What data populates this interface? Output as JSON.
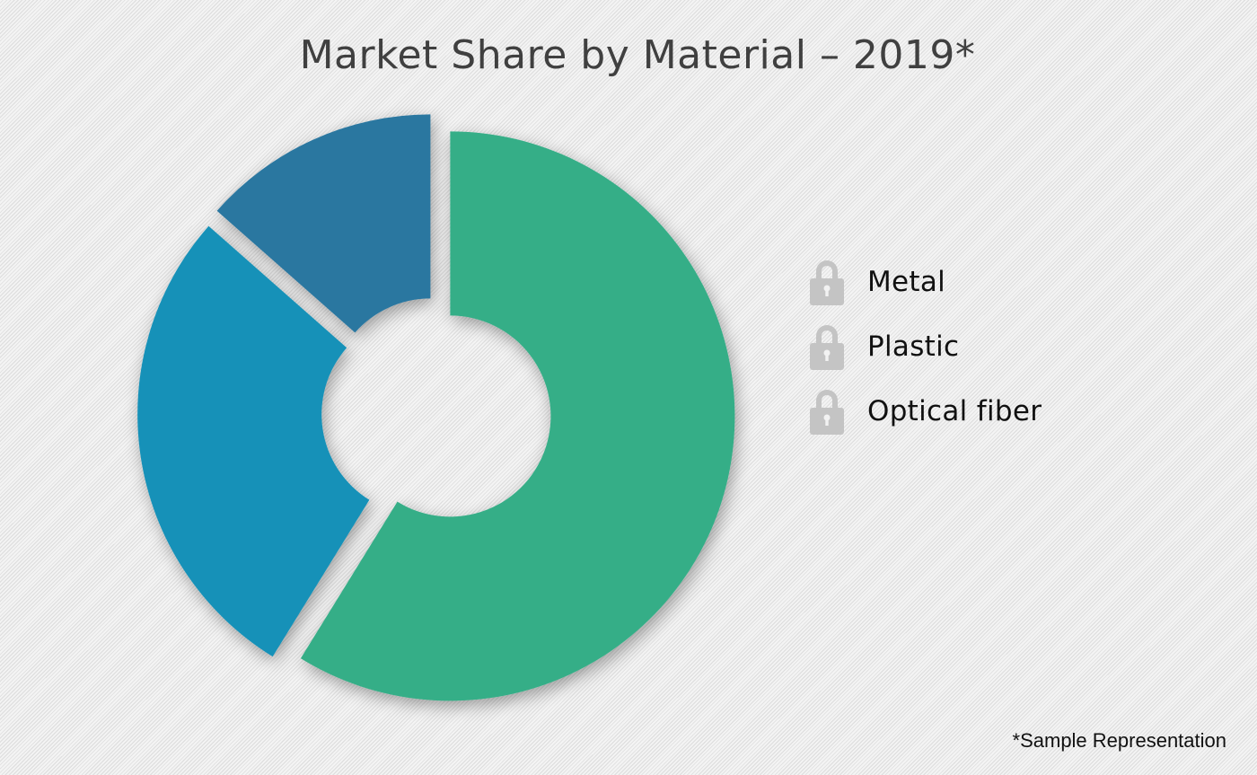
{
  "title": "Market Share by Material – 2019*",
  "footnote": "*Sample Representation",
  "legend": [
    {
      "label": "Metal",
      "icon": "lock-icon"
    },
    {
      "label": "Plastic",
      "icon": "lock-icon"
    },
    {
      "label": "Optical fiber",
      "icon": "lock-icon"
    }
  ],
  "colors": {
    "lock_icon": "#c4c4c4",
    "title_text": "#404040"
  },
  "chart_data": {
    "type": "pie",
    "variant": "donut (exploded)",
    "title": "Market Share by Material – 2019*",
    "categories": [
      "Metal",
      "Plastic",
      "Optical fiber"
    ],
    "values": [
      58.8,
      27.7,
      13.5
    ],
    "unit": "%",
    "colors": [
      "#35ae87",
      "#1391b8",
      "#2c77a0"
    ],
    "legend_position": "right",
    "data_labels": false,
    "note": "Legend swatches are obscured by lock icons; values estimated from slice angles"
  }
}
